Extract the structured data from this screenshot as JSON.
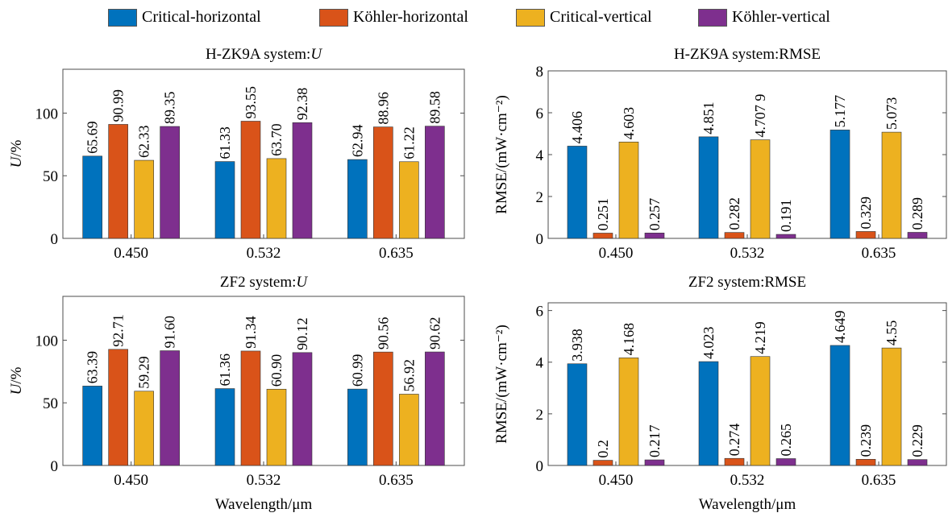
{
  "colors": {
    "critical_horizontal": "#0072BD",
    "kohler_horizontal": "#D95319",
    "critical_vertical": "#EDB120",
    "kohler_vertical": "#7E2F8E"
  },
  "legend": [
    {
      "label": "Critical-horizontal",
      "color": "#0072BD"
    },
    {
      "label": "Köhler-horizontal",
      "color": "#D95319"
    },
    {
      "label": "Critical-vertical",
      "color": "#EDB120"
    },
    {
      "label": "Köhler-vertical",
      "color": "#7E2F8E"
    }
  ],
  "chart_data": [
    {
      "type": "bar",
      "title_prefix": "H-ZK9A system:",
      "title_var": "U",
      "ylabel_var": "U",
      "ylabel_suffix": "/%",
      "xlabel": "",
      "categories": [
        "0.450",
        "0.532",
        "0.635"
      ],
      "ylim": [
        0,
        135
      ],
      "yticks": [
        "0",
        "50",
        "100"
      ],
      "series": [
        {
          "name": "Critical-horizontal",
          "values": [
            65.69,
            61.33,
            62.94
          ],
          "labels": [
            "65.69",
            "61.33",
            "62.94"
          ]
        },
        {
          "name": "Köhler-horizontal",
          "values": [
            90.99,
            93.55,
            88.96
          ],
          "labels": [
            "90.99",
            "93.55",
            "88.96"
          ]
        },
        {
          "name": "Critical-vertical",
          "values": [
            62.33,
            63.7,
            61.22
          ],
          "labels": [
            "62.33",
            "63.70",
            "61.22"
          ]
        },
        {
          "name": "Köhler-vertical",
          "values": [
            89.35,
            92.38,
            89.58
          ],
          "labels": [
            "89.35",
            "92.38",
            "89.58"
          ]
        }
      ]
    },
    {
      "type": "bar",
      "title_prefix": "H-ZK9A system:RMSE",
      "title_var": "",
      "ylabel_var": "",
      "ylabel_suffix": "RMSE/(mW·cm⁻²)",
      "xlabel": "",
      "categories": [
        "0.450",
        "0.532",
        "0.635"
      ],
      "ylim": [
        0,
        8
      ],
      "yticks": [
        "0",
        "2",
        "4",
        "6",
        "8"
      ],
      "series": [
        {
          "name": "Critical-horizontal",
          "values": [
            4.406,
            4.851,
            5.177
          ],
          "labels": [
            "4.406",
            "4.851",
            "5.177"
          ]
        },
        {
          "name": "Köhler-horizontal",
          "values": [
            0.251,
            0.282,
            0.329
          ],
          "labels": [
            "0.251",
            "0.282",
            "0.329"
          ]
        },
        {
          "name": "Critical-vertical",
          "values": [
            4.603,
            4.7079,
            5.073
          ],
          "labels": [
            "4.603",
            "4.707 9",
            "5.073"
          ]
        },
        {
          "name": "Köhler-vertical",
          "values": [
            0.257,
            0.191,
            0.289
          ],
          "labels": [
            "0.257",
            "0.191",
            "0.289"
          ]
        }
      ]
    },
    {
      "type": "bar",
      "title_prefix": "ZF2 system:",
      "title_var": "U",
      "ylabel_var": "U",
      "ylabel_suffix": "/%",
      "xlabel": "Wavelength/μm",
      "categories": [
        "0.450",
        "0.532",
        "0.635"
      ],
      "ylim": [
        0,
        135
      ],
      "yticks": [
        "0",
        "50",
        "100"
      ],
      "series": [
        {
          "name": "Critical-horizontal",
          "values": [
            63.39,
            61.36,
            60.99
          ],
          "labels": [
            "63.39",
            "61.36",
            "60.99"
          ]
        },
        {
          "name": "Köhler-horizontal",
          "values": [
            92.71,
            91.34,
            90.56
          ],
          "labels": [
            "92.71",
            "91.34",
            "90.56"
          ]
        },
        {
          "name": "Critical-vertical",
          "values": [
            59.29,
            60.9,
            56.92
          ],
          "labels": [
            "59.29",
            "60.90",
            "56.92"
          ]
        },
        {
          "name": "Köhler-vertical",
          "values": [
            91.6,
            90.12,
            90.62
          ],
          "labels": [
            "91.60",
            "90.12",
            "90.62"
          ]
        }
      ]
    },
    {
      "type": "bar",
      "title_prefix": "ZF2 system:RMSE",
      "title_var": "",
      "ylabel_var": "",
      "ylabel_suffix": "RMSE/(mW·cm⁻²)",
      "xlabel": "Wavelength/μm",
      "categories": [
        "0.450",
        "0.532",
        "0.635"
      ],
      "ylim": [
        0,
        6.3
      ],
      "yticks": [
        "0",
        "2",
        "4",
        "6"
      ],
      "series": [
        {
          "name": "Critical-horizontal",
          "values": [
            3.938,
            4.023,
            4.649
          ],
          "labels": [
            "3.938",
            "4.023",
            "4.649"
          ]
        },
        {
          "name": "Köhler-horizontal",
          "values": [
            0.2,
            0.274,
            0.239
          ],
          "labels": [
            "0.2",
            "0.274",
            "0.239"
          ]
        },
        {
          "name": "Critical-vertical",
          "values": [
            4.168,
            4.219,
            4.55
          ],
          "labels": [
            "4.168",
            "4.219",
            "4.55"
          ]
        },
        {
          "name": "Köhler-vertical",
          "values": [
            0.217,
            0.265,
            0.229
          ],
          "labels": [
            "0.217",
            "0.265",
            "0.229"
          ]
        }
      ]
    }
  ]
}
